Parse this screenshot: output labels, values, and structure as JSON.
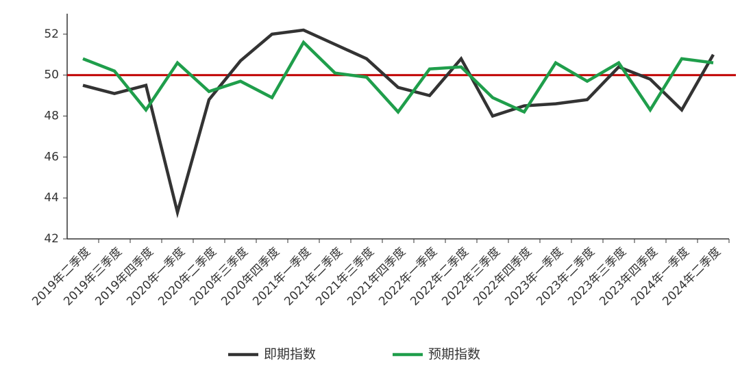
{
  "chart_data": {
    "type": "line",
    "categories": [
      "2019年二季度",
      "2019年三季度",
      "2019年四季度",
      "2020年一季度",
      "2020年二季度",
      "2020年三季度",
      "2020年四季度",
      "2021年一季度",
      "2021年二季度",
      "2021年三季度",
      "2021年四季度",
      "2022年一季度",
      "2022年二季度",
      "2022年三季度",
      "2022年四季度",
      "2023年一季度",
      "2023年二季度",
      "2023年三季度",
      "2023年四季度",
      "2024年一季度",
      "2024年二季度"
    ],
    "series": [
      {
        "name": "即期指数",
        "color": "#333333",
        "values": [
          49.5,
          49.1,
          49.5,
          43.3,
          48.8,
          50.7,
          52.0,
          52.2,
          51.5,
          50.8,
          49.4,
          49.0,
          50.8,
          48.0,
          48.5,
          48.6,
          48.8,
          50.4,
          49.8,
          48.3,
          51.0
        ]
      },
      {
        "name": "预期指数",
        "color": "#1f9e4b",
        "values": [
          50.8,
          50.2,
          48.3,
          50.6,
          49.2,
          49.7,
          48.9,
          51.6,
          50.1,
          49.9,
          48.2,
          50.3,
          50.4,
          48.9,
          48.2,
          50.6,
          49.7,
          50.6,
          48.3,
          50.8,
          50.6
        ]
      }
    ],
    "reference_line": 50,
    "reference_color": "#c00000",
    "ylim": [
      42,
      53
    ],
    "yticks": [
      42,
      44,
      46,
      48,
      50,
      52
    ],
    "legend": "bottom"
  }
}
